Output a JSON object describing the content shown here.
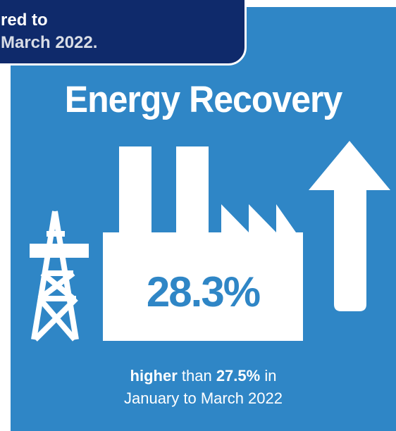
{
  "banner": {
    "line1": "red to",
    "line2": "March 2022."
  },
  "title": "Energy Recovery",
  "metric": {
    "value": "28.3%"
  },
  "caption": {
    "bold_word": "higher",
    "text_1": " than ",
    "bold_value": "27.5%",
    "text_2": " in",
    "line2": "January to March 2022"
  },
  "icons": [
    "pylon-icon",
    "factory-icon",
    "up-arrow-icon"
  ],
  "colors": {
    "panel": "#2f86c6",
    "banner": "#0f2a6b",
    "text": "#ffffff"
  }
}
